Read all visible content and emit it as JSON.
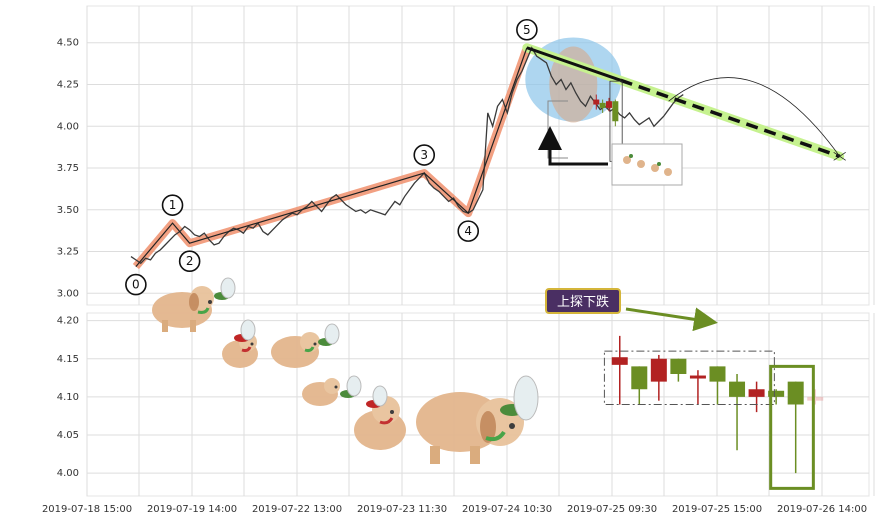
{
  "chart_data": [
    {
      "type": "line",
      "panel": "top",
      "x_tick_labels": [
        "2019-07-18 15:00",
        "2019-07-19 14:00",
        "2019-07-22 13:00",
        "2019-07-23 11:30",
        "2019-07-24 10:30",
        "2019-07-25 09:30",
        "2019-07-25 15:00",
        "2019-07-26 14:00"
      ],
      "ylim": [
        2.93,
        4.72
      ],
      "y_ticks": [
        "3.00",
        "3.25",
        "3.50",
        "3.75",
        "4.00",
        "4.25",
        "4.50"
      ],
      "grid": true,
      "price_series": [
        [
          0.9,
          3.22
        ],
        [
          1.0,
          3.2
        ],
        [
          1.1,
          3.18
        ],
        [
          1.2,
          3.21
        ],
        [
          1.3,
          3.2
        ],
        [
          1.4,
          3.24
        ],
        [
          1.5,
          3.26
        ],
        [
          1.6,
          3.29
        ],
        [
          1.7,
          3.32
        ],
        [
          1.8,
          3.35
        ],
        [
          1.9,
          3.37
        ],
        [
          2.0,
          3.4
        ],
        [
          2.1,
          3.38
        ],
        [
          2.2,
          3.35
        ],
        [
          2.3,
          3.34
        ],
        [
          2.4,
          3.36
        ],
        [
          2.5,
          3.32
        ],
        [
          2.6,
          3.29
        ],
        [
          2.7,
          3.3
        ],
        [
          2.8,
          3.34
        ],
        [
          2.9,
          3.37
        ],
        [
          3.0,
          3.39
        ],
        [
          3.1,
          3.38
        ],
        [
          3.2,
          3.36
        ],
        [
          3.3,
          3.4
        ],
        [
          3.4,
          3.39
        ],
        [
          3.5,
          3.42
        ],
        [
          3.6,
          3.37
        ],
        [
          3.7,
          3.35
        ],
        [
          3.8,
          3.38
        ],
        [
          3.9,
          3.41
        ],
        [
          4.0,
          3.44
        ],
        [
          4.1,
          3.46
        ],
        [
          4.2,
          3.48
        ],
        [
          4.3,
          3.47
        ],
        [
          4.4,
          3.5
        ],
        [
          4.5,
          3.52
        ],
        [
          4.6,
          3.55
        ],
        [
          4.7,
          3.52
        ],
        [
          4.8,
          3.49
        ],
        [
          4.9,
          3.53
        ],
        [
          5.0,
          3.57
        ],
        [
          5.1,
          3.59
        ],
        [
          5.2,
          3.56
        ],
        [
          5.3,
          3.53
        ],
        [
          5.4,
          3.51
        ],
        [
          5.5,
          3.49
        ],
        [
          5.6,
          3.5
        ],
        [
          5.7,
          3.48
        ],
        [
          5.8,
          3.5
        ],
        [
          5.9,
          3.49
        ],
        [
          6.0,
          3.48
        ],
        [
          6.1,
          3.47
        ],
        [
          6.2,
          3.51
        ],
        [
          6.3,
          3.55
        ],
        [
          6.4,
          3.53
        ],
        [
          6.5,
          3.58
        ],
        [
          6.6,
          3.62
        ],
        [
          6.7,
          3.66
        ],
        [
          6.8,
          3.69
        ],
        [
          6.9,
          3.72
        ],
        [
          7.0,
          3.66
        ],
        [
          7.1,
          3.63
        ],
        [
          7.2,
          3.61
        ],
        [
          7.3,
          3.58
        ],
        [
          7.4,
          3.55
        ],
        [
          7.5,
          3.57
        ],
        [
          7.6,
          3.52
        ],
        [
          7.7,
          3.49
        ],
        [
          7.8,
          3.48
        ],
        [
          7.9,
          3.5
        ],
        [
          8.0,
          3.56
        ],
        [
          8.1,
          3.62
        ],
        [
          8.2,
          4.08
        ],
        [
          8.3,
          4.0
        ],
        [
          8.4,
          4.12
        ],
        [
          8.5,
          4.16
        ],
        [
          8.6,
          4.08
        ],
        [
          8.7,
          4.2
        ],
        [
          8.8,
          4.28
        ],
        [
          8.9,
          4.33
        ],
        [
          9.0,
          4.4
        ],
        [
          9.1,
          4.47
        ],
        [
          9.2,
          4.42
        ],
        [
          9.3,
          4.4
        ],
        [
          9.4,
          4.38
        ],
        [
          9.5,
          4.3
        ],
        [
          9.6,
          4.25
        ],
        [
          9.7,
          4.28
        ],
        [
          9.8,
          4.22
        ],
        [
          9.9,
          4.26
        ],
        [
          10.0,
          4.2
        ],
        [
          10.1,
          4.15
        ],
        [
          10.2,
          4.12
        ],
        [
          10.3,
          4.18
        ],
        [
          10.4,
          4.14
        ],
        [
          10.5,
          4.1
        ],
        [
          10.6,
          4.12
        ],
        [
          10.7,
          4.09
        ],
        [
          10.8,
          4.11
        ],
        [
          10.9,
          4.07
        ],
        [
          11.0,
          4.05
        ],
        [
          11.1,
          4.08
        ],
        [
          11.2,
          4.04
        ],
        [
          11.3,
          4.01
        ],
        [
          11.4,
          4.03
        ],
        [
          11.5,
          4.05
        ],
        [
          11.6,
          4.0
        ],
        [
          11.7,
          4.03
        ],
        [
          11.8,
          4.06
        ],
        [
          11.9,
          4.1
        ],
        [
          12.0,
          4.14
        ],
        [
          12.1,
          4.17
        ],
        [
          12.2,
          4.19
        ]
      ],
      "wave_points": [
        {
          "label": "0",
          "x": 1.0,
          "y": 3.16,
          "label_dy": 1
        },
        {
          "label": "1",
          "x": 1.75,
          "y": 3.42,
          "label_dy": -1
        },
        {
          "label": "2",
          "x": 2.1,
          "y": 3.3,
          "label_dy": 1
        },
        {
          "label": "3",
          "x": 6.9,
          "y": 3.72,
          "label_dy": -1
        },
        {
          "label": "4",
          "x": 7.8,
          "y": 3.48,
          "label_dy": 1
        },
        {
          "label": "5",
          "x": 9.0,
          "y": 4.47,
          "label_dy": -1
        }
      ],
      "trend_line": {
        "from": [
          9.0,
          4.47
        ],
        "to": [
          15.4,
          3.82
        ]
      },
      "box": {
        "x0": 10.7,
        "x1": 10.95,
        "y0": 3.79,
        "y1": 4.27
      },
      "overlay_candles": [
        {
          "x": 10.42,
          "open": 4.13,
          "close": 4.16,
          "high": 4.19,
          "low": 4.1,
          "up": false
        },
        {
          "x": 10.55,
          "open": 4.14,
          "close": 4.11,
          "high": 4.16,
          "low": 4.08,
          "up": true
        },
        {
          "x": 10.68,
          "open": 4.11,
          "close": 4.15,
          "high": 4.17,
          "low": 4.09,
          "up": false
        },
        {
          "x": 10.81,
          "open": 4.15,
          "close": 4.03,
          "high": 4.16,
          "low": 4.0,
          "up": true
        }
      ]
    },
    {
      "type": "candlestick",
      "panel": "bottom",
      "ylim": [
        3.97,
        4.21
      ],
      "y_ticks": [
        "4.00",
        "4.05",
        "4.10",
        "4.15",
        "4.20"
      ],
      "grid": true,
      "annotation": "上探下跌",
      "candles": [
        {
          "x": 10.9,
          "open": 4.142,
          "close": 4.152,
          "high": 4.18,
          "low": 4.09,
          "up": false
        },
        {
          "x": 11.3,
          "open": 4.14,
          "close": 4.11,
          "high": 4.14,
          "low": 4.09,
          "up": true
        },
        {
          "x": 11.7,
          "open": 4.12,
          "close": 4.15,
          "high": 4.155,
          "low": 4.095,
          "up": false
        },
        {
          "x": 12.1,
          "open": 4.15,
          "close": 4.13,
          "high": 4.15,
          "low": 4.12,
          "up": true
        },
        {
          "x": 12.5,
          "open": 4.125,
          "close": 4.128,
          "high": 4.135,
          "low": 4.09,
          "up": false
        },
        {
          "x": 12.9,
          "open": 4.14,
          "close": 4.12,
          "high": 4.14,
          "low": 4.09,
          "up": true
        },
        {
          "x": 13.3,
          "open": 4.12,
          "close": 4.1,
          "high": 4.13,
          "low": 4.03,
          "up": true
        },
        {
          "x": 13.7,
          "open": 4.1,
          "close": 4.11,
          "high": 4.12,
          "low": 4.08,
          "up": false
        },
        {
          "x": 14.1,
          "open": 4.108,
          "close": 4.1,
          "high": 4.11,
          "low": 4.09,
          "up": true
        },
        {
          "x": 14.5,
          "open": 4.12,
          "close": 4.09,
          "high": 4.12,
          "low": 4.0,
          "up": true
        },
        {
          "x": 14.9,
          "open": 4.1,
          "close": 4.095,
          "high": 4.11,
          "low": 4.09,
          "up": false,
          "faded": true
        }
      ]
    }
  ],
  "colors": {
    "grid": "#dddddd",
    "price_line": "#3a3a3a",
    "wave": "#f08f6c",
    "wave_thin": "#222222",
    "trend": "#111111",
    "trend_glow": "#c6f28f",
    "ellipse": "#8cc4ea",
    "ellipse_inner": "#d6a98a",
    "candle_up": "#6b8e23",
    "candle_down": "#b22222",
    "tag_bg": "#4a2f63",
    "tag_border": "#d4b53a",
    "arrow": "#6b8e23",
    "highlight_box": "#6b8e23"
  },
  "decor": {
    "dog_icon": "dog-icon",
    "bee_icon": "bee-icon",
    "arrow_icon": "arrow-icon"
  }
}
